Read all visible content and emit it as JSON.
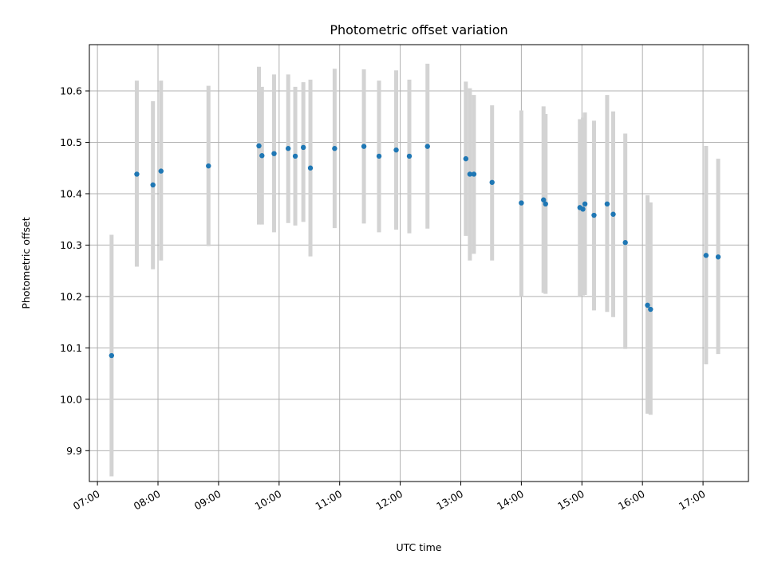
{
  "chart_data": {
    "type": "scatter",
    "title": "Photometric offset variation",
    "xlabel": "UTC time",
    "ylabel": "Photometric offset",
    "x_ticks": [
      "07:00",
      "08:00",
      "09:00",
      "10:00",
      "11:00",
      "12:00",
      "13:00",
      "14:00",
      "15:00",
      "16:00",
      "17:00"
    ],
    "y_ticks": [
      "9.9",
      "10.0",
      "10.1",
      "10.2",
      "10.3",
      "10.4",
      "10.5",
      "10.6"
    ],
    "xlim": [
      "06:52",
      "17:45"
    ],
    "ylim": [
      9.84,
      10.69
    ],
    "grid": true,
    "colors": {
      "point": "#1f77b4",
      "errorbar": "#d3d3d3"
    },
    "points": [
      {
        "t": "07:14",
        "y": 10.085,
        "ylo": 9.85,
        "yhi": 10.32
      },
      {
        "t": "07:39",
        "y": 10.438,
        "ylo": 10.258,
        "yhi": 10.62
      },
      {
        "t": "07:55",
        "y": 10.417,
        "ylo": 10.253,
        "yhi": 10.58
      },
      {
        "t": "08:03",
        "y": 10.444,
        "ylo": 10.27,
        "yhi": 10.62
      },
      {
        "t": "08:50",
        "y": 10.454,
        "ylo": 10.298,
        "yhi": 10.61
      },
      {
        "t": "09:40",
        "y": 10.493,
        "ylo": 10.34,
        "yhi": 10.647
      },
      {
        "t": "09:43",
        "y": 10.474,
        "ylo": 10.34,
        "yhi": 10.608
      },
      {
        "t": "09:55",
        "y": 10.478,
        "ylo": 10.325,
        "yhi": 10.632
      },
      {
        "t": "10:09",
        "y": 10.488,
        "ylo": 10.343,
        "yhi": 10.632
      },
      {
        "t": "10:16",
        "y": 10.473,
        "ylo": 10.338,
        "yhi": 10.608
      },
      {
        "t": "10:24",
        "y": 10.49,
        "ylo": 10.345,
        "yhi": 10.617
      },
      {
        "t": "10:31",
        "y": 10.45,
        "ylo": 10.278,
        "yhi": 10.622
      },
      {
        "t": "10:55",
        "y": 10.488,
        "ylo": 10.333,
        "yhi": 10.643
      },
      {
        "t": "11:24",
        "y": 10.492,
        "ylo": 10.342,
        "yhi": 10.642
      },
      {
        "t": "11:39",
        "y": 10.473,
        "ylo": 10.325,
        "yhi": 10.62
      },
      {
        "t": "11:56",
        "y": 10.485,
        "ylo": 10.33,
        "yhi": 10.64
      },
      {
        "t": "12:09",
        "y": 10.473,
        "ylo": 10.323,
        "yhi": 10.622
      },
      {
        "t": "12:27",
        "y": 10.492,
        "ylo": 10.332,
        "yhi": 10.653
      },
      {
        "t": "13:05",
        "y": 10.468,
        "ylo": 10.318,
        "yhi": 10.618
      },
      {
        "t": "13:09",
        "y": 10.438,
        "ylo": 10.27,
        "yhi": 10.605
      },
      {
        "t": "13:13",
        "y": 10.438,
        "ylo": 10.283,
        "yhi": 10.592
      },
      {
        "t": "13:31",
        "y": 10.422,
        "ylo": 10.27,
        "yhi": 10.572
      },
      {
        "t": "14:00",
        "y": 10.382,
        "ylo": 10.2,
        "yhi": 10.562
      },
      {
        "t": "14:22",
        "y": 10.388,
        "ylo": 10.207,
        "yhi": 10.57
      },
      {
        "t": "14:24",
        "y": 10.38,
        "ylo": 10.205,
        "yhi": 10.555
      },
      {
        "t": "14:58",
        "y": 10.373,
        "ylo": 10.2,
        "yhi": 10.545
      },
      {
        "t": "15:01",
        "y": 10.37,
        "ylo": 10.202,
        "yhi": 10.548
      },
      {
        "t": "15:03",
        "y": 10.38,
        "ylo": 10.203,
        "yhi": 10.558
      },
      {
        "t": "15:12",
        "y": 10.358,
        "ylo": 10.173,
        "yhi": 10.542
      },
      {
        "t": "15:25",
        "y": 10.38,
        "ylo": 10.17,
        "yhi": 10.592
      },
      {
        "t": "15:31",
        "y": 10.36,
        "ylo": 10.16,
        "yhi": 10.56
      },
      {
        "t": "15:43",
        "y": 10.305,
        "ylo": 10.098,
        "yhi": 10.517
      },
      {
        "t": "16:05",
        "y": 10.183,
        "ylo": 9.972,
        "yhi": 10.397
      },
      {
        "t": "16:08",
        "y": 10.175,
        "ylo": 9.97,
        "yhi": 10.383
      },
      {
        "t": "17:03",
        "y": 10.28,
        "ylo": 10.068,
        "yhi": 10.493
      },
      {
        "t": "17:15",
        "y": 10.277,
        "ylo": 10.088,
        "yhi": 10.468
      }
    ]
  }
}
